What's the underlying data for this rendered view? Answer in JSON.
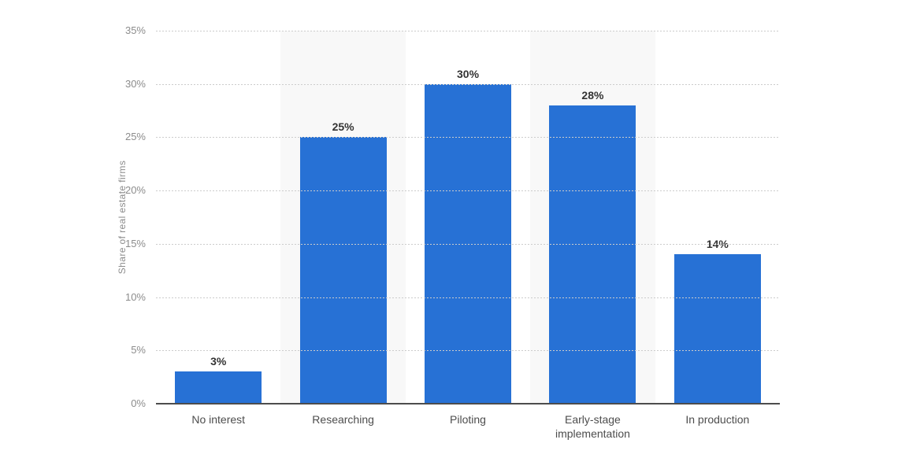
{
  "chart_data": {
    "type": "bar",
    "categories": [
      "No interest",
      "Researching",
      "Piloting",
      "Early-stage implementation",
      "In production"
    ],
    "values": [
      3,
      25,
      30,
      28,
      14
    ],
    "value_suffix": "%",
    "title": "",
    "xlabel": "",
    "ylabel": "Share of real estate firms",
    "ylim": [
      0,
      35
    ],
    "yticks": [
      0,
      5,
      10,
      15,
      20,
      25,
      30,
      35
    ],
    "ytick_suffix": "%",
    "grid": "dotted-horizontal",
    "legend": "none",
    "band_columns": [
      1,
      3
    ],
    "colors": {
      "bar": "#2771d5",
      "band": "#f8f8f8",
      "gridline": "#cccccc",
      "axis_line": "#4d4d4d",
      "tick_label": "#8c8c8c",
      "category_label": "#4d4d4d",
      "value_label": "#333333",
      "axis_title": "#8c8c8c",
      "background": "#ffffff"
    }
  }
}
